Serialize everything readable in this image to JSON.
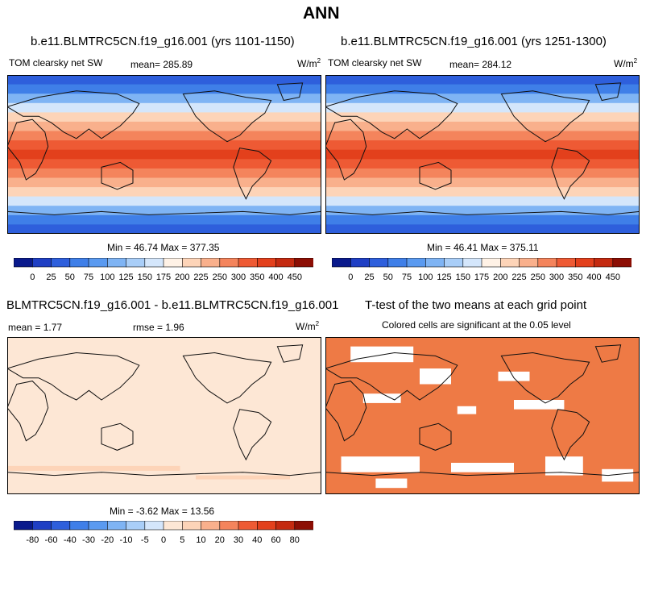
{
  "title": "ANN",
  "panels": {
    "p1": {
      "case": "b.e11.BLMTRC5CN.f19_g16.001 (yrs 1101-1150)",
      "var": "TOM clearsky net SW",
      "mean": "mean= 285.89",
      "units": "W/m",
      "units_sup": "2",
      "minmax": "Min =  46.74 Max = 377.35"
    },
    "p2": {
      "case": "b.e11.BLMTRC5CN.f19_g16.001 (yrs 1251-1300)",
      "var": "TOM clearsky net SW",
      "mean": "mean= 284.12",
      "units": "W/m",
      "units_sup": "2",
      "minmax": "Min =  46.41 Max = 375.11"
    },
    "diff": {
      "title": "BLMTRC5CN.f19_g16.001 - b.e11.BLMTRC5CN.f19_g16.001",
      "mean": "mean =   1.77",
      "rmse": "rmse =   1.96",
      "units": "W/m",
      "units_sup": "2",
      "minmax": "Min =  -3.62 Max =  13.56"
    },
    "ttest": {
      "title": "T-test of the two means at each grid point",
      "subtitle": "Colored cells are significant at the 0.05 level"
    }
  },
  "colorbars": {
    "main": {
      "labels": [
        "0",
        "25",
        "50",
        "75",
        "100",
        "125",
        "150",
        "175",
        "200",
        "225",
        "250",
        "300",
        "350",
        "400",
        "450"
      ],
      "colors": [
        "#0a1a8c",
        "#1f3fc4",
        "#2e5fdc",
        "#3f7fe8",
        "#5a9af0",
        "#7fb4f4",
        "#a9cef8",
        "#d4e6fb",
        "#fff2e6",
        "#fdd4b8",
        "#f9b08c",
        "#f4845c",
        "#ee5a34",
        "#e3401c",
        "#c42a10",
        "#8c0e04"
      ]
    },
    "diff": {
      "labels": [
        "-80",
        "-60",
        "-40",
        "-30",
        "-20",
        "-10",
        "-5",
        "0",
        "5",
        "10",
        "20",
        "30",
        "40",
        "60",
        "80"
      ],
      "colors": [
        "#0a1a8c",
        "#1f3fc4",
        "#2e5fdc",
        "#3f7fe8",
        "#5a9af0",
        "#7fb4f4",
        "#a9cef8",
        "#d4e6fb",
        "#fde7d5",
        "#fdd4b8",
        "#f9b08c",
        "#f4845c",
        "#ee5a34",
        "#e3401c",
        "#c42a10",
        "#8c0e04"
      ]
    }
  },
  "map_fill": {
    "band_colors": [
      "#2e5fdc",
      "#3f7fe8",
      "#7fb4f4",
      "#d4e6fb",
      "#fdd4b8",
      "#f9b08c",
      "#f4845c",
      "#ee5a34",
      "#e3401c",
      "#ee5a34",
      "#f4845c",
      "#f9b08c",
      "#fdd4b8",
      "#d4e6fb",
      "#7fb4f4",
      "#3f7fe8",
      "#2e5fdc"
    ],
    "diff_color": "#fde7d5",
    "ttest_color": "#ee7a45"
  }
}
